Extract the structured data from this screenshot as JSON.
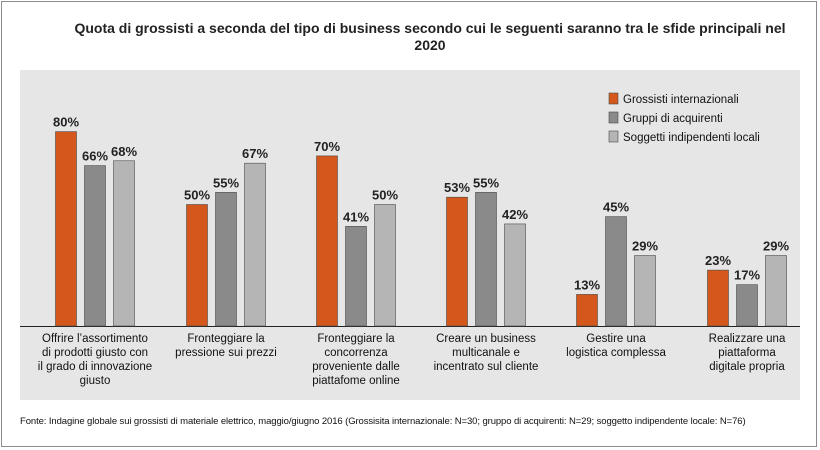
{
  "title": "Quota di grossisti a seconda del tipo di business secondo cui le seguenti saranno tra le sfide principali nel 2020",
  "footer": "Fonte: Indagine globale sui grossisti di materiale elettrico, maggio/giugno 2016 (Grossisita internazionale: N=30; gruppo di acquirenti: N=29; soggetto indipendente locale: N=76)",
  "colors": {
    "series": [
      "#d4581c",
      "#8a8a8a",
      "#b5b5b5"
    ],
    "plot_bg": "#e6e6e6"
  },
  "chart_data": {
    "type": "bar",
    "categories": [
      [
        "Offrire l’assortimento",
        "di prodotti giusto con",
        "il grado di innovazione",
        "giusto"
      ],
      [
        "Fronteggiare la",
        "pressione sui prezzi"
      ],
      [
        "Fronteggiare la",
        "concorrenza",
        "proveniente dalle",
        "piattafome online"
      ],
      [
        "Creare un business",
        "multicanale e",
        "incentrato sul cliente"
      ],
      [
        "Gestire una",
        "logistica complessa"
      ],
      [
        "Realizzare una",
        "piattaforma",
        "digitale propria"
      ]
    ],
    "series": [
      {
        "name": "Grossisti internazionali",
        "values": [
          80,
          50,
          70,
          53,
          13,
          23
        ]
      },
      {
        "name": "Gruppi di acquirenti",
        "values": [
          66,
          55,
          41,
          55,
          45,
          17
        ]
      },
      {
        "name": "Soggetti indipendenti locali",
        "values": [
          68,
          67,
          50,
          42,
          29,
          29
        ]
      }
    ],
    "value_suffix": "%",
    "ylim": [
      0,
      100
    ],
    "grid": false,
    "legend_position": "top-right"
  }
}
